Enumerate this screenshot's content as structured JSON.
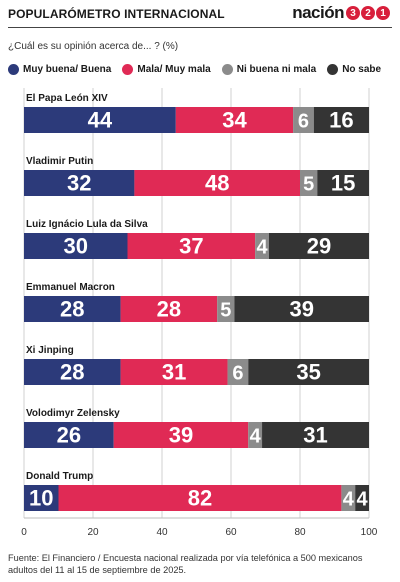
{
  "header": {
    "title": "POPULARÓMETRO INTERNACIONAL",
    "brand_text": "nación",
    "brand_digits": [
      "3",
      "2",
      "1"
    ]
  },
  "question": "¿Cuál es su opinión acerca de... ? (%)",
  "legend": [
    {
      "label": "Muy buena/ Buena",
      "color": "#2c3a7a"
    },
    {
      "label": "Mala/ Muy mala",
      "color": "#e02a55"
    },
    {
      "label": "Ni buena ni mala",
      "color": "#8b8b8b"
    },
    {
      "label": "No sabe",
      "color": "#343434"
    }
  ],
  "chart_data": {
    "type": "bar",
    "orientation": "horizontal",
    "stacked": true,
    "categories": [
      "El Papa León XIV",
      "Vladimir Putin",
      "Luiz Ignácio Lula da Silva",
      "Emmanuel Macron",
      "Xi Jinping",
      "Volodimyr Zelensky",
      "Donald Trump"
    ],
    "series": [
      {
        "name": "Muy buena/ Buena",
        "color": "#2c3a7a",
        "values": [
          44,
          32,
          30,
          28,
          28,
          26,
          10
        ]
      },
      {
        "name": "Mala/ Muy mala",
        "color": "#e02a55",
        "values": [
          34,
          48,
          37,
          28,
          31,
          39,
          82
        ]
      },
      {
        "name": "Ni buena ni mala",
        "color": "#8b8b8b",
        "values": [
          6,
          5,
          4,
          5,
          6,
          4,
          4
        ]
      },
      {
        "name": "No sabe",
        "color": "#343434",
        "values": [
          16,
          15,
          29,
          39,
          35,
          31,
          4
        ]
      }
    ],
    "xlim": [
      0,
      100
    ],
    "xticks": [
      0,
      20,
      40,
      60,
      80,
      100
    ],
    "grid": true,
    "legend_position": "top"
  },
  "source": "Fuente: El Financiero / Encuesta nacional realizada por vía telefónica a 500 mexicanos adultos del 11 al 15 de septiembre de 2025."
}
